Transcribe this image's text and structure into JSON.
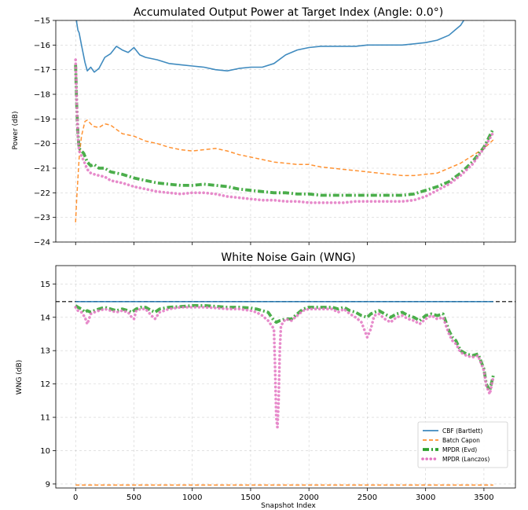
{
  "chart_data": [
    {
      "type": "line",
      "title": "Accumulated Output Power at Target Index (Angle: 0.0°)",
      "xlabel": "",
      "ylabel": "Power (dB)",
      "xlim": [
        -170,
        3770
      ],
      "ylim": [
        -24,
        -15
      ],
      "xticks": [
        0,
        500,
        1000,
        1500,
        2000,
        2500,
        3000,
        3500
      ],
      "yticks": [
        -24,
        -23,
        -22,
        -21,
        -20,
        -19,
        -18,
        -17,
        -16,
        -15
      ],
      "yticklabels": [
        "−24",
        "−23",
        "−22",
        "−21",
        "−20",
        "−19",
        "−18",
        "−17",
        "−16",
        "−15"
      ],
      "grid": true,
      "series": [
        {
          "name": "CBF (Bartlett)",
          "color": "#1f77b4",
          "style": "solid",
          "x": [
            0,
            10,
            20,
            30,
            50,
            80,
            100,
            130,
            160,
            200,
            250,
            300,
            350,
            400,
            450,
            500,
            550,
            600,
            700,
            800,
            900,
            1000,
            1100,
            1200,
            1300,
            1400,
            1500,
            1600,
            1700,
            1800,
            1900,
            2000,
            2100,
            2200,
            2300,
            2400,
            2500,
            2600,
            2700,
            2800,
            2900,
            3000,
            3100,
            3200,
            3250,
            3300,
            3340
          ],
          "y": [
            -14.6,
            -15.1,
            -15.4,
            -15.5,
            -16.0,
            -16.7,
            -17.05,
            -16.9,
            -17.1,
            -16.95,
            -16.5,
            -16.35,
            -16.05,
            -16.2,
            -16.3,
            -16.1,
            -16.4,
            -16.5,
            -16.6,
            -16.75,
            -16.8,
            -16.85,
            -16.9,
            -17.0,
            -17.05,
            -16.95,
            -16.9,
            -16.9,
            -16.75,
            -16.4,
            -16.2,
            -16.1,
            -16.05,
            -16.05,
            -16.05,
            -16.05,
            -16.0,
            -16.0,
            -16.0,
            -16.0,
            -15.95,
            -15.9,
            -15.8,
            -15.6,
            -15.4,
            -15.2,
            -14.9
          ]
        },
        {
          "name": "Batch Capon",
          "color": "#ff7f0e",
          "style": "dashed",
          "x": [
            0,
            10,
            20,
            30,
            50,
            80,
            100,
            150,
            200,
            250,
            300,
            400,
            500,
            600,
            700,
            800,
            900,
            1000,
            1100,
            1200,
            1300,
            1400,
            1500,
            1600,
            1700,
            1800,
            1900,
            2000,
            2100,
            2200,
            2300,
            2400,
            2500,
            2600,
            2700,
            2800,
            2900,
            3000,
            3100,
            3200,
            3300,
            3400,
            3500,
            3580
          ],
          "y": [
            -23.2,
            -22.2,
            -21.4,
            -20.6,
            -19.7,
            -19.1,
            -19.05,
            -19.3,
            -19.35,
            -19.2,
            -19.25,
            -19.6,
            -19.7,
            -19.9,
            -20.0,
            -20.15,
            -20.25,
            -20.3,
            -20.25,
            -20.2,
            -20.3,
            -20.45,
            -20.55,
            -20.65,
            -20.75,
            -20.8,
            -20.85,
            -20.85,
            -20.95,
            -21.0,
            -21.05,
            -21.1,
            -21.15,
            -21.2,
            -21.25,
            -21.3,
            -21.3,
            -21.25,
            -21.2,
            -21.0,
            -20.8,
            -20.5,
            -20.2,
            -19.85
          ]
        },
        {
          "name": "MPDR (Evd)",
          "color": "#2ca02c",
          "style": "dashdot",
          "x": [
            0,
            10,
            20,
            30,
            50,
            70,
            100,
            130,
            160,
            200,
            250,
            300,
            400,
            500,
            600,
            700,
            800,
            900,
            1000,
            1100,
            1200,
            1300,
            1400,
            1500,
            1600,
            1700,
            1800,
            1900,
            2000,
            2100,
            2200,
            2300,
            2400,
            2500,
            2600,
            2700,
            2800,
            2900,
            3000,
            3100,
            3200,
            3300,
            3400,
            3500,
            3580
          ],
          "y": [
            -16.8,
            -18.5,
            -19.6,
            -20.2,
            -20.3,
            -20.4,
            -20.75,
            -20.9,
            -20.85,
            -21.0,
            -21.0,
            -21.15,
            -21.25,
            -21.4,
            -21.5,
            -21.6,
            -21.65,
            -21.7,
            -21.7,
            -21.65,
            -21.7,
            -21.75,
            -21.85,
            -21.9,
            -21.95,
            -22.0,
            -22.0,
            -22.05,
            -22.05,
            -22.1,
            -22.1,
            -22.1,
            -22.1,
            -22.1,
            -22.1,
            -22.1,
            -22.1,
            -22.05,
            -21.9,
            -21.75,
            -21.55,
            -21.2,
            -20.75,
            -20.15,
            -19.4
          ]
        },
        {
          "name": "MPDR (Lanczos)",
          "color": "#e377c2",
          "style": "dotted",
          "x": [
            0,
            10,
            20,
            30,
            50,
            70,
            100,
            130,
            160,
            200,
            250,
            300,
            400,
            500,
            600,
            700,
            800,
            900,
            1000,
            1100,
            1200,
            1300,
            1400,
            1500,
            1600,
            1700,
            1800,
            1900,
            2000,
            2100,
            2200,
            2300,
            2400,
            2500,
            2600,
            2700,
            2800,
            2900,
            3000,
            3100,
            3200,
            3300,
            3400,
            3500,
            3580
          ],
          "y": [
            -16.6,
            -18.4,
            -19.7,
            -20.3,
            -20.5,
            -20.7,
            -21.05,
            -21.2,
            -21.25,
            -21.3,
            -21.35,
            -21.5,
            -21.6,
            -21.75,
            -21.85,
            -21.95,
            -22.0,
            -22.05,
            -22.0,
            -22.0,
            -22.05,
            -22.15,
            -22.2,
            -22.25,
            -22.3,
            -22.3,
            -22.35,
            -22.35,
            -22.4,
            -22.4,
            -22.4,
            -22.4,
            -22.35,
            -22.35,
            -22.35,
            -22.35,
            -22.35,
            -22.3,
            -22.15,
            -21.9,
            -21.65,
            -21.3,
            -20.85,
            -20.2,
            -19.55
          ]
        }
      ]
    },
    {
      "type": "line",
      "title": "White Noise Gain (WNG)",
      "xlabel": "Snapshot Index",
      "ylabel": "WNG (dB)",
      "xlim": [
        -170,
        3770
      ],
      "ylim": [
        8.88,
        15.55
      ],
      "xticks": [
        0,
        500,
        1000,
        1500,
        2000,
        2500,
        3000,
        3500
      ],
      "yticks": [
        9,
        10,
        11,
        12,
        13,
        14,
        15
      ],
      "reference_line": {
        "y": 14.47,
        "color": "#000000",
        "style": "dashed"
      },
      "grid": true,
      "legend": {
        "position": "lower-right",
        "entries": [
          "CBF (Bartlett)",
          "Batch Capon",
          "MPDR (Evd)",
          "MPDR (Lanczos)"
        ]
      },
      "series": [
        {
          "name": "CBF (Bartlett)",
          "color": "#1f77b4",
          "style": "solid",
          "x": [
            0,
            3580
          ],
          "y": [
            14.47,
            14.47
          ]
        },
        {
          "name": "Batch Capon",
          "color": "#ff7f0e",
          "style": "dashed",
          "x": [
            0,
            3580
          ],
          "y": [
            8.97,
            8.97
          ]
        },
        {
          "name": "MPDR (Evd)",
          "color": "#2ca02c",
          "style": "dashdot",
          "x": [
            0,
            20,
            50,
            80,
            100,
            130,
            160,
            200,
            250,
            300,
            350,
            400,
            450,
            480,
            500,
            520,
            560,
            600,
            650,
            680,
            720,
            800,
            900,
            1000,
            1100,
            1200,
            1300,
            1400,
            1500,
            1550,
            1600,
            1650,
            1700,
            1720,
            1750,
            1800,
            1850,
            1900,
            1950,
            2000,
            2100,
            2200,
            2250,
            2300,
            2350,
            2400,
            2450,
            2500,
            2530,
            2560,
            2600,
            2650,
            2700,
            2750,
            2800,
            2850,
            2900,
            2950,
            3000,
            3050,
            3100,
            3150,
            3200,
            3230,
            3260,
            3300,
            3350,
            3400,
            3450,
            3500,
            3520,
            3550,
            3580
          ],
          "y": [
            14.35,
            14.3,
            14.25,
            14.15,
            14.2,
            14.15,
            14.2,
            14.25,
            14.3,
            14.25,
            14.2,
            14.25,
            14.2,
            14.15,
            14.2,
            14.25,
            14.3,
            14.3,
            14.2,
            14.15,
            14.25,
            14.3,
            14.32,
            14.35,
            14.35,
            14.33,
            14.3,
            14.3,
            14.28,
            14.25,
            14.2,
            14.15,
            13.9,
            13.85,
            13.9,
            13.95,
            13.95,
            14.1,
            14.25,
            14.3,
            14.3,
            14.3,
            14.25,
            14.3,
            14.2,
            14.15,
            14.05,
            14.0,
            14.1,
            14.15,
            14.2,
            14.1,
            14.0,
            14.1,
            14.15,
            14.05,
            14.0,
            13.9,
            14.05,
            14.1,
            14.05,
            14.1,
            13.6,
            13.4,
            13.3,
            13.0,
            12.9,
            12.85,
            12.9,
            12.45,
            12.0,
            11.8,
            12.25
          ]
        },
        {
          "name": "MPDR (Lanczos)",
          "color": "#e377c2",
          "style": "dotted",
          "x": [
            0,
            20,
            50,
            80,
            100,
            130,
            160,
            200,
            250,
            300,
            350,
            400,
            450,
            480,
            500,
            520,
            560,
            600,
            650,
            680,
            720,
            800,
            900,
            1000,
            1100,
            1200,
            1300,
            1400,
            1500,
            1550,
            1600,
            1650,
            1690,
            1700,
            1710,
            1720,
            1730,
            1740,
            1750,
            1760,
            1780,
            1800,
            1850,
            1900,
            1950,
            2000,
            2100,
            2200,
            2250,
            2300,
            2350,
            2400,
            2450,
            2500,
            2530,
            2560,
            2600,
            2650,
            2700,
            2750,
            2800,
            2850,
            2900,
            2950,
            3000,
            3050,
            3100,
            3150,
            3200,
            3230,
            3260,
            3300,
            3350,
            3400,
            3450,
            3500,
            3520,
            3550,
            3580
          ],
          "y": [
            14.3,
            14.2,
            14.15,
            14.0,
            13.8,
            14.1,
            14.15,
            14.2,
            14.25,
            14.2,
            14.15,
            14.2,
            14.15,
            14.0,
            13.95,
            14.2,
            14.25,
            14.25,
            14.05,
            13.95,
            14.15,
            14.25,
            14.3,
            14.3,
            14.3,
            14.28,
            14.25,
            14.25,
            14.2,
            14.15,
            14.05,
            13.9,
            13.7,
            13.6,
            12.5,
            11.0,
            10.7,
            11.5,
            13.0,
            13.75,
            13.85,
            13.95,
            13.9,
            14.05,
            14.2,
            14.25,
            14.25,
            14.25,
            14.15,
            14.25,
            14.1,
            14.0,
            13.85,
            13.4,
            13.65,
            14.05,
            14.1,
            13.95,
            13.85,
            14.0,
            14.05,
            13.95,
            13.9,
            13.8,
            13.95,
            14.05,
            13.95,
            14.0,
            13.5,
            13.3,
            13.2,
            12.95,
            12.85,
            12.8,
            12.85,
            12.4,
            11.95,
            11.7,
            12.2
          ]
        }
      ]
    }
  ]
}
